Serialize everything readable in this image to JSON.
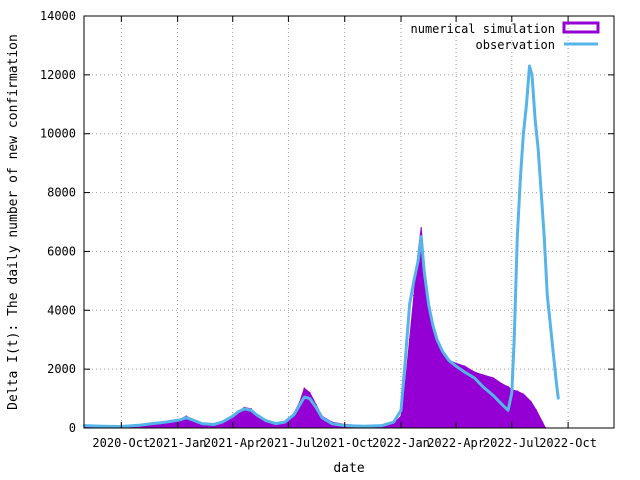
{
  "chart_data": {
    "type": "area",
    "title": "",
    "xlabel": "date",
    "ylabel": "Delta I(t): The daily number of new confirmation",
    "x_range": [
      "2020-08-01",
      "2022-12-15"
    ],
    "ylim": [
      0,
      14000
    ],
    "y_ticks": [
      0,
      2000,
      4000,
      6000,
      8000,
      10000,
      12000,
      14000
    ],
    "x_ticks": [
      {
        "date": "2020-10-01",
        "label": "2020-Oct"
      },
      {
        "date": "2021-01-01",
        "label": "2021-Jan"
      },
      {
        "date": "2021-04-01",
        "label": "2021-Apr"
      },
      {
        "date": "2021-07-01",
        "label": "2021-Jul"
      },
      {
        "date": "2021-10-01",
        "label": "2021-Oct"
      },
      {
        "date": "2022-01-01",
        "label": "2022-Jan"
      },
      {
        "date": "2022-04-01",
        "label": "2022-Apr"
      },
      {
        "date": "2022-07-01",
        "label": "2022-Jul"
      },
      {
        "date": "2022-10-01",
        "label": "2022-Oct"
      }
    ],
    "grid": true,
    "legend_position": "top-right",
    "series": [
      {
        "name": "numerical simulation",
        "style": "impulses",
        "color": "#9400d3",
        "points": [
          [
            "2020-08-01",
            80
          ],
          [
            "2020-09-01",
            60
          ],
          [
            "2020-10-01",
            60
          ],
          [
            "2020-11-01",
            70
          ],
          [
            "2020-11-15",
            100
          ],
          [
            "2020-12-01",
            180
          ],
          [
            "2020-12-20",
            250
          ],
          [
            "2021-01-05",
            300
          ],
          [
            "2021-01-15",
            400
          ],
          [
            "2021-01-25",
            300
          ],
          [
            "2021-02-10",
            150
          ],
          [
            "2021-03-01",
            120
          ],
          [
            "2021-03-15",
            200
          ],
          [
            "2021-04-01",
            400
          ],
          [
            "2021-04-10",
            550
          ],
          [
            "2021-04-20",
            700
          ],
          [
            "2021-05-01",
            650
          ],
          [
            "2021-05-10",
            450
          ],
          [
            "2021-05-25",
            250
          ],
          [
            "2021-06-10",
            150
          ],
          [
            "2021-06-25",
            200
          ],
          [
            "2021-07-10",
            500
          ],
          [
            "2021-07-20",
            900
          ],
          [
            "2021-07-27",
            1350
          ],
          [
            "2021-08-05",
            1200
          ],
          [
            "2021-08-15",
            800
          ],
          [
            "2021-08-25",
            400
          ],
          [
            "2021-09-10",
            200
          ],
          [
            "2021-10-01",
            120
          ],
          [
            "2021-11-01",
            80
          ],
          [
            "2021-12-01",
            100
          ],
          [
            "2021-12-20",
            150
          ],
          [
            "2022-01-01",
            400
          ],
          [
            "2022-01-08",
            1500
          ],
          [
            "2022-01-15",
            3000
          ],
          [
            "2022-01-22",
            4500
          ],
          [
            "2022-01-29",
            6000
          ],
          [
            "2022-02-03",
            6800
          ],
          [
            "2022-02-08",
            5500
          ],
          [
            "2022-02-15",
            4000
          ],
          [
            "2022-02-22",
            3500
          ],
          [
            "2022-03-01",
            3000
          ],
          [
            "2022-03-10",
            2600
          ],
          [
            "2022-03-20",
            2300
          ],
          [
            "2022-04-01",
            2200
          ],
          [
            "2022-04-15",
            2100
          ],
          [
            "2022-05-01",
            1900
          ],
          [
            "2022-05-15",
            1800
          ],
          [
            "2022-06-01",
            1700
          ],
          [
            "2022-06-15",
            1500
          ],
          [
            "2022-06-25",
            1400
          ],
          [
            "2022-07-01",
            1300
          ],
          [
            "2022-07-10",
            1250
          ],
          [
            "2022-07-20",
            1150
          ],
          [
            "2022-08-01",
            900
          ],
          [
            "2022-08-10",
            600
          ],
          [
            "2022-08-20",
            200
          ],
          [
            "2022-08-25",
            0
          ]
        ]
      },
      {
        "name": "observation",
        "style": "lines",
        "color": "#56b4e9",
        "points": [
          [
            "2020-08-01",
            80
          ],
          [
            "2020-09-01",
            60
          ],
          [
            "2020-10-01",
            50
          ],
          [
            "2020-11-01",
            100
          ],
          [
            "2020-11-20",
            150
          ],
          [
            "2020-12-05",
            180
          ],
          [
            "2020-12-20",
            220
          ],
          [
            "2021-01-05",
            280
          ],
          [
            "2021-01-15",
            350
          ],
          [
            "2021-01-25",
            280
          ],
          [
            "2021-02-10",
            150
          ],
          [
            "2021-03-01",
            120
          ],
          [
            "2021-03-15",
            200
          ],
          [
            "2021-04-01",
            400
          ],
          [
            "2021-04-10",
            550
          ],
          [
            "2021-04-20",
            650
          ],
          [
            "2021-05-01",
            600
          ],
          [
            "2021-05-10",
            450
          ],
          [
            "2021-05-25",
            250
          ],
          [
            "2021-06-10",
            150
          ],
          [
            "2021-06-25",
            200
          ],
          [
            "2021-07-10",
            450
          ],
          [
            "2021-07-20",
            800
          ],
          [
            "2021-07-27",
            1050
          ],
          [
            "2021-08-05",
            1000
          ],
          [
            "2021-08-15",
            700
          ],
          [
            "2021-08-25",
            350
          ],
          [
            "2021-09-10",
            150
          ],
          [
            "2021-10-01",
            80
          ],
          [
            "2021-11-01",
            60
          ],
          [
            "2021-12-01",
            80
          ],
          [
            "2021-12-20",
            200
          ],
          [
            "2022-01-01",
            600
          ],
          [
            "2022-01-08",
            2300
          ],
          [
            "2022-01-15",
            4200
          ],
          [
            "2022-01-22",
            5000
          ],
          [
            "2022-01-29",
            5700
          ],
          [
            "2022-02-03",
            6500
          ],
          [
            "2022-02-08",
            5300
          ],
          [
            "2022-02-15",
            4200
          ],
          [
            "2022-02-22",
            3500
          ],
          [
            "2022-03-01",
            3000
          ],
          [
            "2022-03-10",
            2600
          ],
          [
            "2022-03-20",
            2300
          ],
          [
            "2022-04-01",
            2100
          ],
          [
            "2022-04-15",
            1900
          ],
          [
            "2022-05-01",
            1700
          ],
          [
            "2022-05-15",
            1400
          ],
          [
            "2022-06-01",
            1100
          ],
          [
            "2022-06-15",
            800
          ],
          [
            "2022-06-25",
            600
          ],
          [
            "2022-07-01",
            1200
          ],
          [
            "2022-07-05",
            3000
          ],
          [
            "2022-07-10",
            6500
          ],
          [
            "2022-07-15",
            8500
          ],
          [
            "2022-07-20",
            10000
          ],
          [
            "2022-07-25",
            11000
          ],
          [
            "2022-07-30",
            12300
          ],
          [
            "2022-08-03",
            12000
          ],
          [
            "2022-08-08",
            10500
          ],
          [
            "2022-08-13",
            9500
          ],
          [
            "2022-08-18",
            8000
          ],
          [
            "2022-08-23",
            6500
          ],
          [
            "2022-08-28",
            4500
          ],
          [
            "2022-09-02",
            3500
          ],
          [
            "2022-09-07",
            2500
          ],
          [
            "2022-09-12",
            1500
          ],
          [
            "2022-09-15",
            1000
          ]
        ]
      }
    ]
  }
}
